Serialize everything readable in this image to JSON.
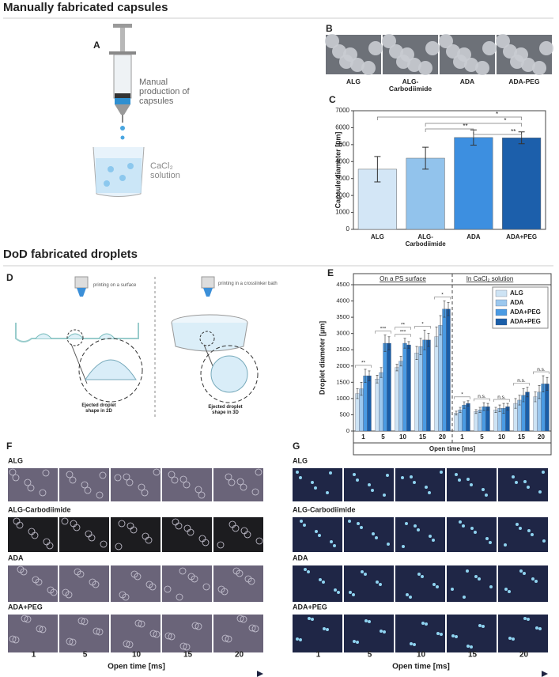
{
  "headings": [
    "Manually fabricated capsules",
    "DoD fabricated droplets"
  ],
  "panel_letters": [
    "A",
    "B",
    "C",
    "D",
    "E",
    "F",
    "G"
  ],
  "panel_a": {
    "syringe_label": "Manual production of capsules",
    "beaker_label": "CaCl₂ solution"
  },
  "panel_b": {
    "labels": [
      "ALG",
      "ALG-Carbodiimide",
      "ADA",
      "ADA-PEG"
    ]
  },
  "panel_d": {
    "left_title": "printing on a surface",
    "right_title": "printing in a crosslinker bath",
    "left_caption": "Ejected droplet shape in 2D",
    "right_caption": "Ejected droplet shape in 3D"
  },
  "chart_data": [
    {
      "type": "bar",
      "ylabel": "Capsule diameter [µm]",
      "categories": [
        "ALG",
        "ALG-Carbodiimide",
        "ADA",
        "ADA+PEG"
      ],
      "values": [
        3550,
        4200,
        5420,
        5400
      ],
      "errors": [
        750,
        650,
        450,
        350
      ],
      "colors": [
        "#d3e6f6",
        "#92c3ec",
        "#3d8fe0",
        "#1c5fab"
      ],
      "ylim": [
        0,
        7000
      ],
      "yticks": [
        0,
        1000,
        2000,
        3000,
        4000,
        5000,
        6000,
        7000
      ],
      "significance": [
        "*",
        "*",
        "**",
        "**"
      ]
    },
    {
      "type": "grouped_bar",
      "ylabel": "Droplet diameter [µm]",
      "xlabel": "Open time [ms]",
      "groups": [
        "On a PS surface",
        "In CaCl₂ solution"
      ],
      "categories": [
        "1",
        "5",
        "10",
        "15",
        "20",
        "1",
        "5",
        "10",
        "15",
        "20"
      ],
      "series": [
        {
          "name": "ALG",
          "color": "#cde3f4",
          "values": [
            1150,
            1600,
            1950,
            2400,
            2900,
            550,
            600,
            650,
            850,
            1050
          ],
          "errors": [
            150,
            120,
            100,
            200,
            300,
            60,
            60,
            80,
            150,
            150
          ]
        },
        {
          "name": "ADA",
          "color": "#9cc8ee",
          "values": [
            1300,
            1800,
            2150,
            2600,
            3250,
            650,
            650,
            700,
            950,
            1200
          ],
          "errors": [
            200,
            150,
            150,
            250,
            300,
            80,
            80,
            100,
            150,
            200
          ]
        },
        {
          "name": "ADA+PEG",
          "color": "#4a9be3",
          "values": [
            1700,
            2700,
            2700,
            2800,
            3750,
            800,
            750,
            700,
            1100,
            1450
          ],
          "errors": [
            200,
            250,
            150,
            300,
            250,
            100,
            120,
            150,
            200,
            250
          ]
        },
        {
          "name": "ADA+PEG",
          "color": "#1a5ea8",
          "values": [
            1700,
            2700,
            2650,
            2800,
            3750,
            850,
            750,
            750,
            1200,
            1450
          ],
          "errors": [
            150,
            200,
            100,
            200,
            200,
            80,
            100,
            100,
            150,
            200
          ]
        }
      ],
      "ylim": [
        0,
        4500
      ],
      "yticks": [
        0,
        500,
        1000,
        1500,
        2000,
        2500,
        3000,
        3500,
        4000,
        4500
      ],
      "legend": "upper-right",
      "significance": [
        [
          "**"
        ],
        [
          "***"
        ],
        [
          "***",
          "**"
        ],
        [
          "*"
        ],
        [
          "*"
        ],
        [
          "*"
        ],
        [
          "n.s."
        ],
        [
          "n.s."
        ],
        [
          "n.s."
        ],
        [
          "n.s."
        ]
      ]
    }
  ],
  "panel_f": {
    "rows": [
      "ALG",
      "ALG-Carbodiimide",
      "ADA",
      "ADA+PEG"
    ],
    "columns": [
      1,
      5,
      10,
      15,
      20
    ],
    "xlabel": "Open time [ms]"
  },
  "panel_g": {
    "rows": [
      "ALG",
      "ALG-Carbodiimide",
      "ADA",
      "ADA+PEG"
    ],
    "columns": [
      1,
      5,
      10,
      15,
      20
    ],
    "xlabel": "Open time [ms]"
  }
}
